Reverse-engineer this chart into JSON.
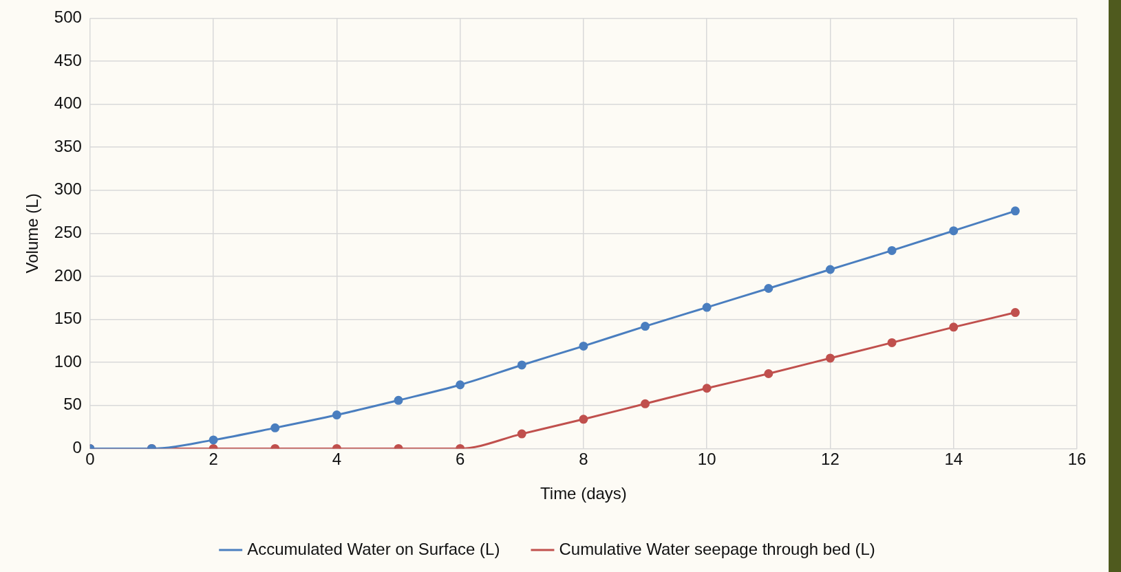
{
  "chart_data": {
    "type": "line",
    "xlabel": "Time (days)",
    "ylabel": "Volume (L)",
    "x": [
      0,
      1,
      2,
      3,
      4,
      5,
      6,
      7,
      8,
      9,
      10,
      11,
      12,
      13,
      14,
      15
    ],
    "series": [
      {
        "name": "Accumulated Water on Surface (L)",
        "color": "#4a7ebf",
        "values": [
          0,
          0,
          10,
          24,
          39,
          56,
          74,
          97,
          119,
          142,
          164,
          186,
          208,
          230,
          253,
          276
        ]
      },
      {
        "name": "Cumulative Water seepage through bed (L)",
        "color": "#c0504d",
        "values": [
          0,
          0,
          0,
          0,
          0,
          0,
          0,
          17,
          34,
          52,
          70,
          87,
          105,
          123,
          141,
          158
        ]
      }
    ],
    "xlim": [
      0,
      16
    ],
    "xticks": [
      0,
      2,
      4,
      6,
      8,
      10,
      12,
      14,
      16
    ],
    "ylim": [
      0,
      500
    ],
    "yticks": [
      0,
      50,
      100,
      150,
      200,
      250,
      300,
      350,
      400,
      450,
      500
    ],
    "grid": true,
    "legend": "bottom",
    "marker": "circle",
    "line_style": "solid"
  }
}
